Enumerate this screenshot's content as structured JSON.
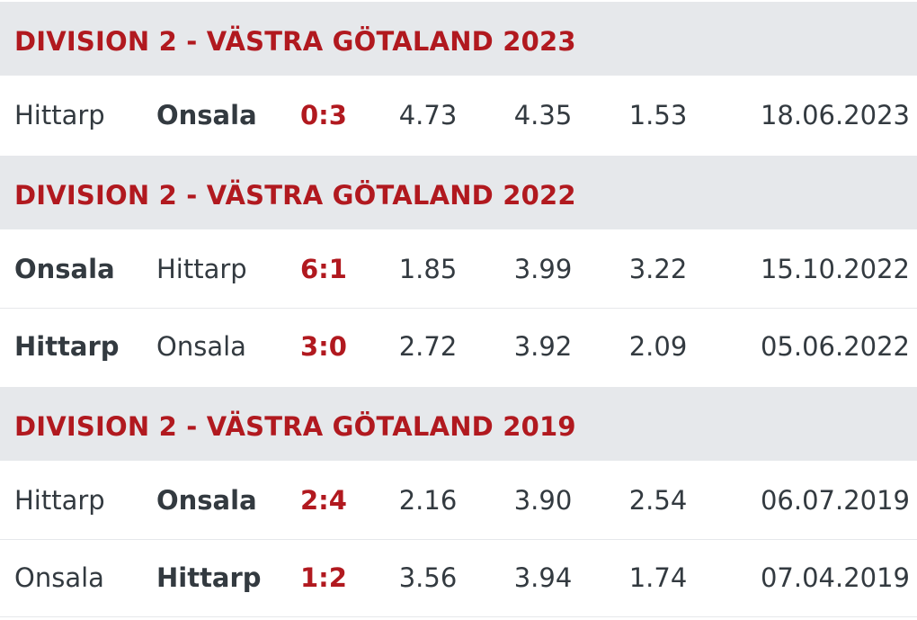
{
  "sections": [
    {
      "title": "DIVISION 2 - VÄSTRA GÖTALAND 2023",
      "matches": [
        {
          "home": "Hittarp",
          "away": "Onsala",
          "score": "0:3",
          "odd1": "4.73",
          "oddx": "4.35",
          "odd2": "1.53",
          "date": "18.06.2023",
          "winner": "away",
          "highlight": "odd2"
        }
      ]
    },
    {
      "title": "DIVISION 2 - VÄSTRA GÖTALAND 2022",
      "matches": [
        {
          "home": "Onsala",
          "away": "Hittarp",
          "score": "6:1",
          "odd1": "1.85",
          "oddx": "3.99",
          "odd2": "3.22",
          "date": "15.10.2022",
          "winner": "home",
          "highlight": "odd1"
        },
        {
          "home": "Hittarp",
          "away": "Onsala",
          "score": "3:0",
          "odd1": "2.72",
          "oddx": "3.92",
          "odd2": "2.09",
          "date": "05.06.2022",
          "winner": "home",
          "highlight": "odd1"
        }
      ]
    },
    {
      "title": "DIVISION 2 - VÄSTRA GÖTALAND 2019",
      "matches": [
        {
          "home": "Hittarp",
          "away": "Onsala",
          "score": "2:4",
          "odd1": "2.16",
          "oddx": "3.90",
          "odd2": "2.54",
          "date": "06.07.2019",
          "winner": "away",
          "highlight": "odd2"
        },
        {
          "home": "Onsala",
          "away": "Hittarp",
          "score": "1:2",
          "odd1": "3.56",
          "oddx": "3.94",
          "odd2": "1.74",
          "date": "07.04.2019",
          "winner": "away",
          "highlight": "odd2"
        }
      ]
    }
  ],
  "colors": {
    "header_background": "#e6e8eb",
    "league_title": "#b1191f",
    "score": "#b1191f",
    "text": "#333a40",
    "odds_highlight": "#fefad6"
  }
}
